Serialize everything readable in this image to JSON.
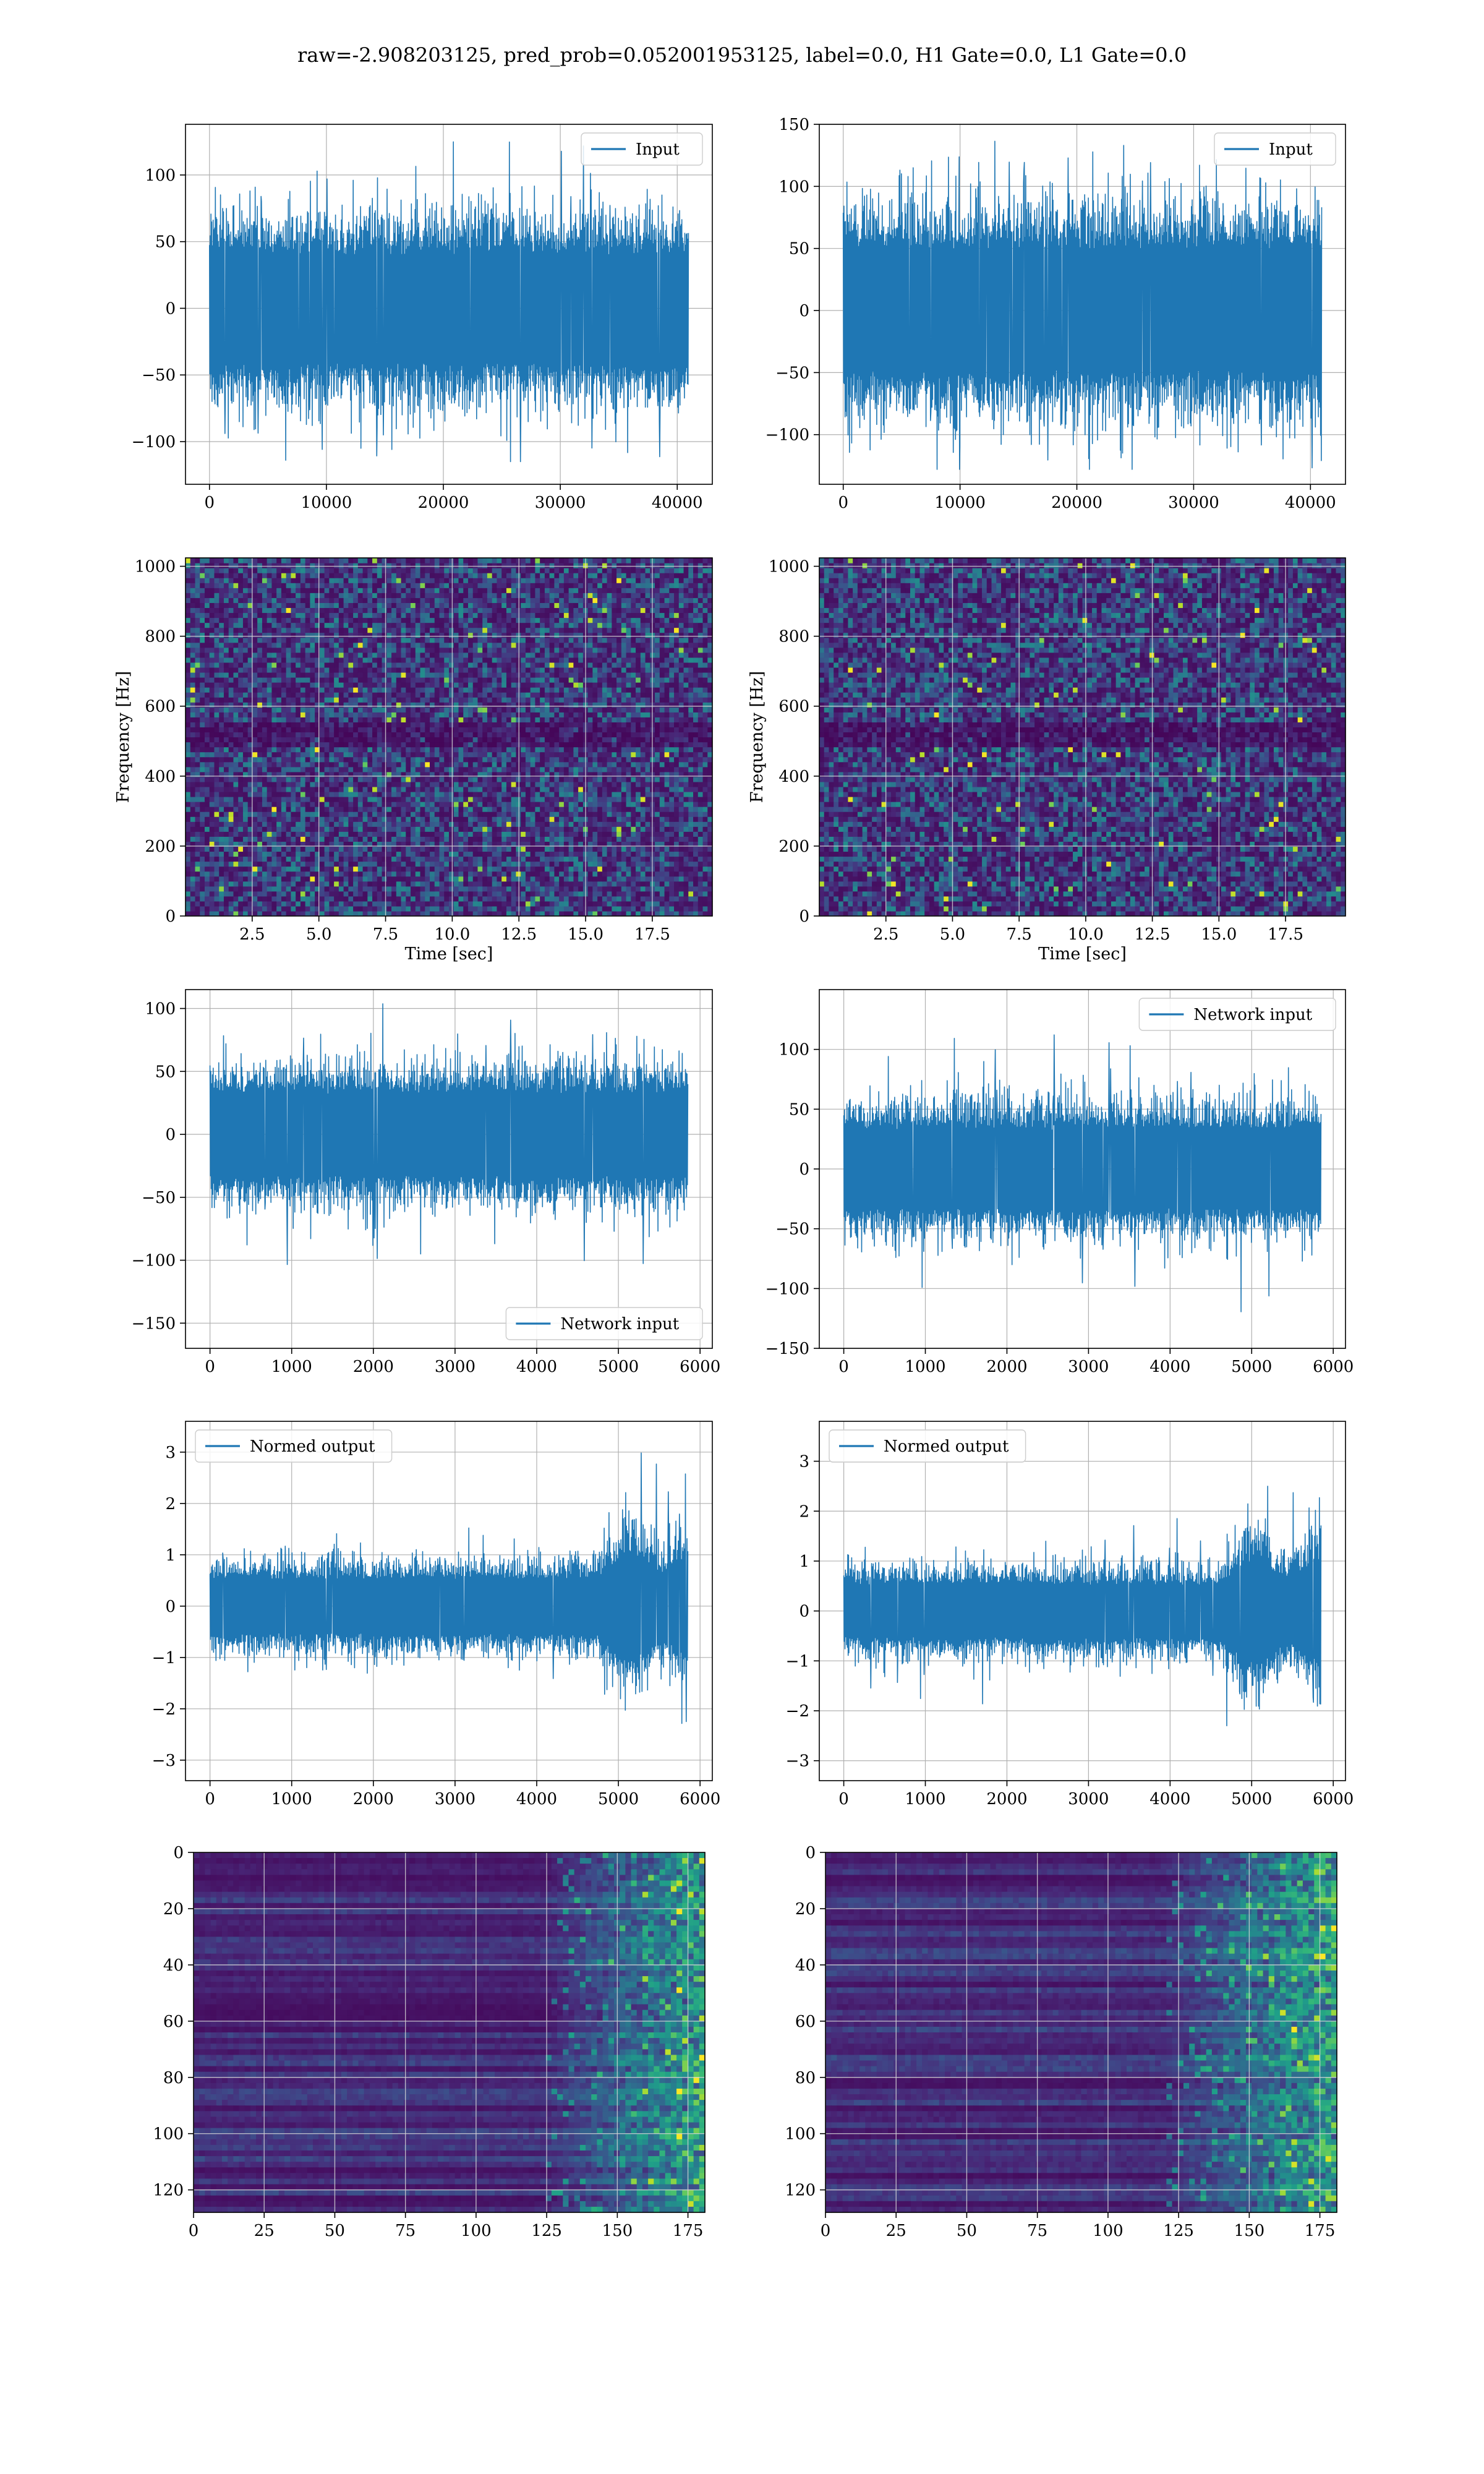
{
  "title": "raw=-2.908203125, pred_prob=0.052001953125, label=0.0, H1 Gate=0.0, L1 Gate=0.0",
  "colors": {
    "line": "#1f77b4"
  },
  "chart_data": [
    {
      "id": "h1-input",
      "type": "line",
      "legend": "Input",
      "legend_loc": "upper-right",
      "xlim": [
        -2050,
        43000
      ],
      "ylim": [
        -132,
        138
      ],
      "xticks": [
        0,
        10000,
        20000,
        30000,
        40000
      ],
      "yticks": [
        -100,
        -50,
        0,
        50,
        100
      ],
      "signal": {
        "x_start": 0,
        "x_end": 40960,
        "n": 1300,
        "core": 62,
        "spike": 125,
        "spike_min": -115,
        "profile": "flat",
        "seed": 11
      }
    },
    {
      "id": "l1-input",
      "type": "line",
      "legend": "Input",
      "legend_loc": "upper-right",
      "xlim": [
        -2050,
        43000
      ],
      "ylim": [
        -140,
        150
      ],
      "xticks": [
        0,
        10000,
        20000,
        30000,
        40000
      ],
      "yticks": [
        -100,
        -50,
        0,
        50,
        100,
        150
      ],
      "signal": {
        "x_start": 0,
        "x_end": 40960,
        "n": 1300,
        "core": 75,
        "spike": 138,
        "spike_min": -128,
        "profile": "flat",
        "seed": 23
      }
    },
    {
      "id": "h1-spectrogram",
      "type": "heatmap",
      "xlabel": "Time [sec]",
      "ylabel": "Frequency [Hz]",
      "xlim": [
        0,
        19.75
      ],
      "ylim": [
        0,
        1024
      ],
      "xticks": [
        "2.5",
        "5.0",
        "7.5",
        "10.0",
        "12.5",
        "15.0",
        "17.5"
      ],
      "yticks": [
        0,
        200,
        400,
        600,
        800,
        1000
      ],
      "grid": true,
      "seed": 31,
      "dark_band": [
        475,
        545
      ]
    },
    {
      "id": "l1-spectrogram",
      "type": "heatmap",
      "xlabel": "Time [sec]",
      "ylabel": "Frequency [Hz]",
      "xlim": [
        0,
        19.75
      ],
      "ylim": [
        0,
        1024
      ],
      "xticks": [
        "2.5",
        "5.0",
        "7.5",
        "10.0",
        "12.5",
        "15.0",
        "17.5"
      ],
      "yticks": [
        0,
        200,
        400,
        600,
        800,
        1000
      ],
      "grid": true,
      "seed": 47,
      "dark_band": [
        475,
        545
      ]
    },
    {
      "id": "h1-network-input",
      "type": "line",
      "legend": "Network input",
      "legend_loc": "lower-right",
      "xlim": [
        -300,
        6150
      ],
      "ylim": [
        -170,
        115
      ],
      "xticks": [
        0,
        1000,
        2000,
        3000,
        4000,
        5000,
        6000
      ],
      "yticks": [
        -150,
        -100,
        -50,
        0,
        50,
        100
      ],
      "signal": {
        "x_start": 0,
        "x_end": 5850,
        "n": 1200,
        "core": 50,
        "spike": 104,
        "spike_min": -156,
        "profile": "flat",
        "seed": 53
      }
    },
    {
      "id": "l1-network-input",
      "type": "line",
      "legend": "Network input",
      "legend_loc": "upper-right",
      "xlim": [
        -300,
        6150
      ],
      "ylim": [
        -150,
        150
      ],
      "xticks": [
        0,
        1000,
        2000,
        3000,
        4000,
        5000,
        6000
      ],
      "yticks": [
        -150,
        -100,
        -50,
        0,
        50,
        100
      ],
      "signal": {
        "x_start": 0,
        "x_end": 5850,
        "n": 1200,
        "core": 50,
        "spike": 125,
        "spike_min": -137,
        "profile": "flat",
        "seed": 61
      }
    },
    {
      "id": "h1-normed-output",
      "type": "line",
      "legend": "Normed output",
      "legend_loc": "upper-left",
      "xlim": [
        -300,
        6150
      ],
      "ylim": [
        -3.4,
        3.6
      ],
      "xticks": [
        0,
        1000,
        2000,
        3000,
        4000,
        5000,
        6000
      ],
      "yticks": [
        -3,
        -2,
        -1,
        0,
        1,
        2,
        3
      ],
      "signal": {
        "x_start": 0,
        "x_end": 5850,
        "n": 1200,
        "core": 0.8,
        "spike": 1.6,
        "spike_min": -3.1,
        "profile": "burst",
        "burst_start": 4700,
        "burst_peak": 3.4,
        "seed": 71
      }
    },
    {
      "id": "l1-normed-output",
      "type": "line",
      "legend": "Normed output",
      "legend_loc": "upper-left",
      "xlim": [
        -300,
        6150
      ],
      "ylim": [
        -3.4,
        3.8
      ],
      "xticks": [
        0,
        1000,
        2000,
        3000,
        4000,
        5000,
        6000
      ],
      "yticks": [
        -3,
        -2,
        -1,
        0,
        1,
        2,
        3
      ],
      "signal": {
        "x_start": 0,
        "x_end": 5850,
        "n": 1200,
        "core": 0.8,
        "spike": 1.9,
        "spike_min": -2.3,
        "profile": "burst",
        "burst_start": 4600,
        "burst_peak": 3.5,
        "seed": 83
      }
    },
    {
      "id": "h1-feature-map",
      "type": "heatmap",
      "xlim": [
        0,
        181
      ],
      "ylim": [
        0,
        128
      ],
      "xticks": [
        0,
        25,
        50,
        75,
        100,
        125,
        150,
        175
      ],
      "yticks": [
        0,
        20,
        40,
        60,
        80,
        100,
        120
      ],
      "grid": true,
      "seed": 97,
      "activity_start": 125
    },
    {
      "id": "l1-feature-map",
      "type": "heatmap",
      "xlim": [
        0,
        181
      ],
      "ylim": [
        0,
        128
      ],
      "xticks": [
        0,
        25,
        50,
        75,
        100,
        125,
        150,
        175
      ],
      "yticks": [
        0,
        20,
        40,
        60,
        80,
        100,
        120
      ],
      "grid": true,
      "seed": 109,
      "activity_start": 120
    }
  ]
}
